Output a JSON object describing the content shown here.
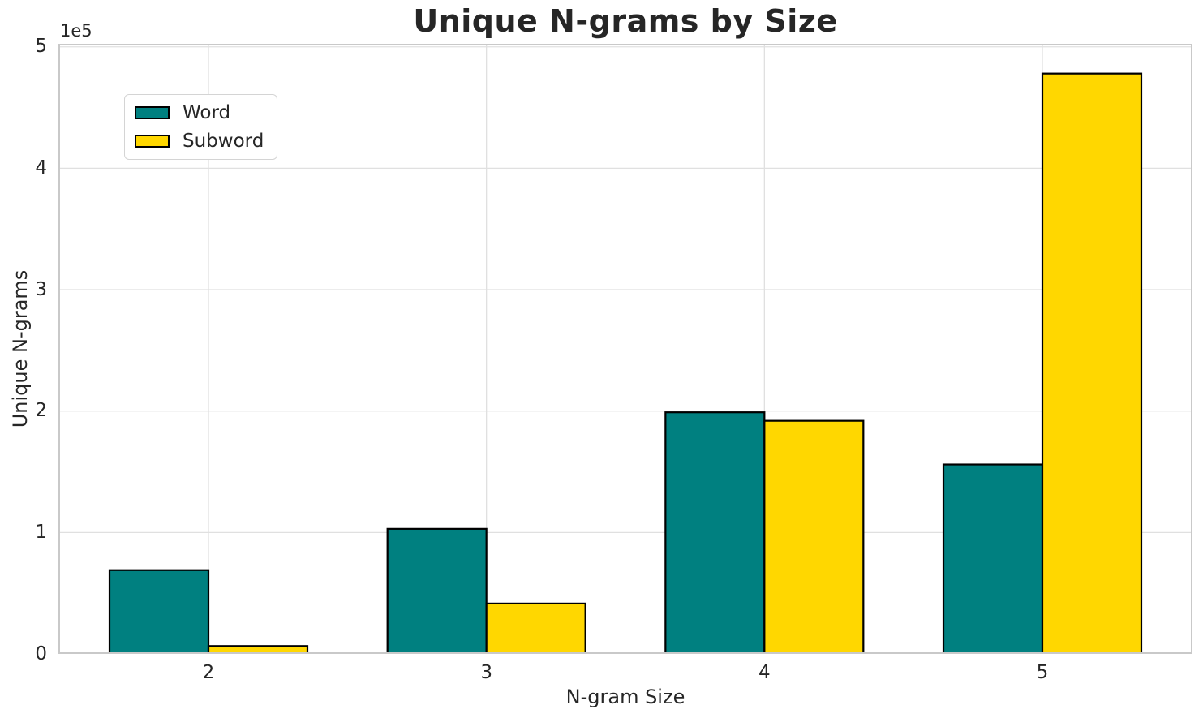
{
  "chart_data": {
    "type": "bar",
    "title": "Unique N-grams by Size",
    "xlabel": "N-gram Size",
    "ylabel": "Unique N-grams",
    "offset_text": "1e5",
    "categories": [
      "2",
      "3",
      "4",
      "5"
    ],
    "series": [
      {
        "name": "Word",
        "color": "#008080",
        "values": [
          69000,
          103000,
          199000,
          156000
        ]
      },
      {
        "name": "Subword",
        "color": "#FFD700",
        "values": [
          6500,
          41500,
          192000,
          478000
        ]
      }
    ],
    "bar_edge_color": "#000000",
    "ylim": [
      0,
      500000
    ],
    "yticks": [
      0,
      100000,
      200000,
      300000,
      400000,
      500000
    ],
    "ytick_labels": [
      "0",
      "1",
      "2",
      "3",
      "4",
      "5"
    ],
    "grid": true,
    "grid_color": "#e0e0e0",
    "spine_color": "#c9c9c9",
    "text_color": "#262626",
    "background_color": "#ffffff",
    "legend_position": "upper left"
  }
}
